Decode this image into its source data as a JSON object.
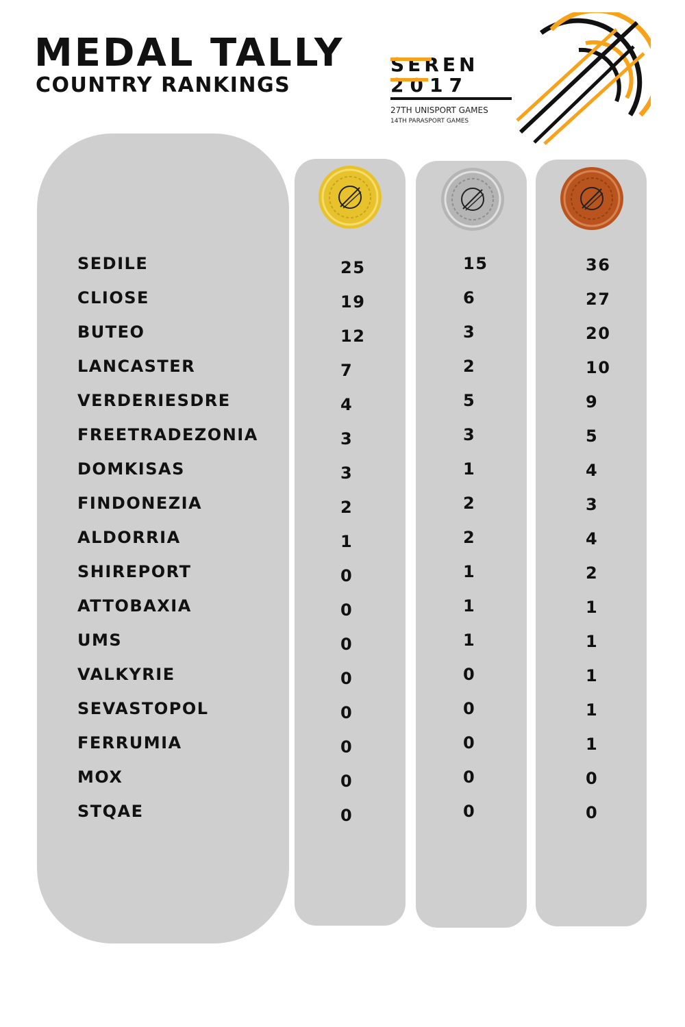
{
  "header": {
    "title": "MEDAL TALLY",
    "subtitle": "COUNTRY RANKINGS"
  },
  "logo": {
    "wordmark_line1": "SEREN",
    "wordmark_line2": "2017",
    "games_line1": "27TH UNISPORT GAMES",
    "games_line2": "14TH PARASPORT GAMES"
  },
  "colors": {
    "panel": "#cfcfcf",
    "accent_orange": "#f7a21b",
    "gold": "#e8c22d",
    "silver": "#b5b5b5",
    "bronze": "#b9541e"
  },
  "medals": [
    {
      "kind": "gold",
      "icon": "gold-medal-icon"
    },
    {
      "kind": "silver",
      "icon": "silver-medal-icon"
    },
    {
      "kind": "bronze",
      "icon": "bronze-medal-icon"
    }
  ],
  "countries": [
    "SEDILE",
    "CLIOSE",
    "BUTEO",
    "LANCASTER",
    "VERDERIESDRE",
    "FREETRADEZONIA",
    "DOMKISAS",
    "FINDONEZIA",
    "ALDORRIA",
    "SHIREPORT",
    "ATTOBAXIA",
    "UMS",
    "VALKYRIE",
    "SEVASTOPOL",
    "FERRUMIA",
    "MOX",
    "STQAE"
  ],
  "gold": [
    "25",
    "19",
    "12",
    "7",
    "4",
    "3",
    "3",
    "2",
    "1",
    "0",
    "0",
    "0",
    "0",
    "0",
    "0",
    "0",
    "0"
  ],
  "silver": [
    "15",
    "6",
    "3",
    "2",
    "5",
    "3",
    "1",
    "2",
    "2",
    "1",
    "1",
    "1",
    "0",
    "0",
    "0",
    "0",
    "0"
  ],
  "bronze": [
    "36",
    "27",
    "20",
    "10",
    "9",
    "5",
    "4",
    "3",
    "4",
    "2",
    "1",
    "1",
    "1",
    "1",
    "1",
    "0",
    "0"
  ]
}
